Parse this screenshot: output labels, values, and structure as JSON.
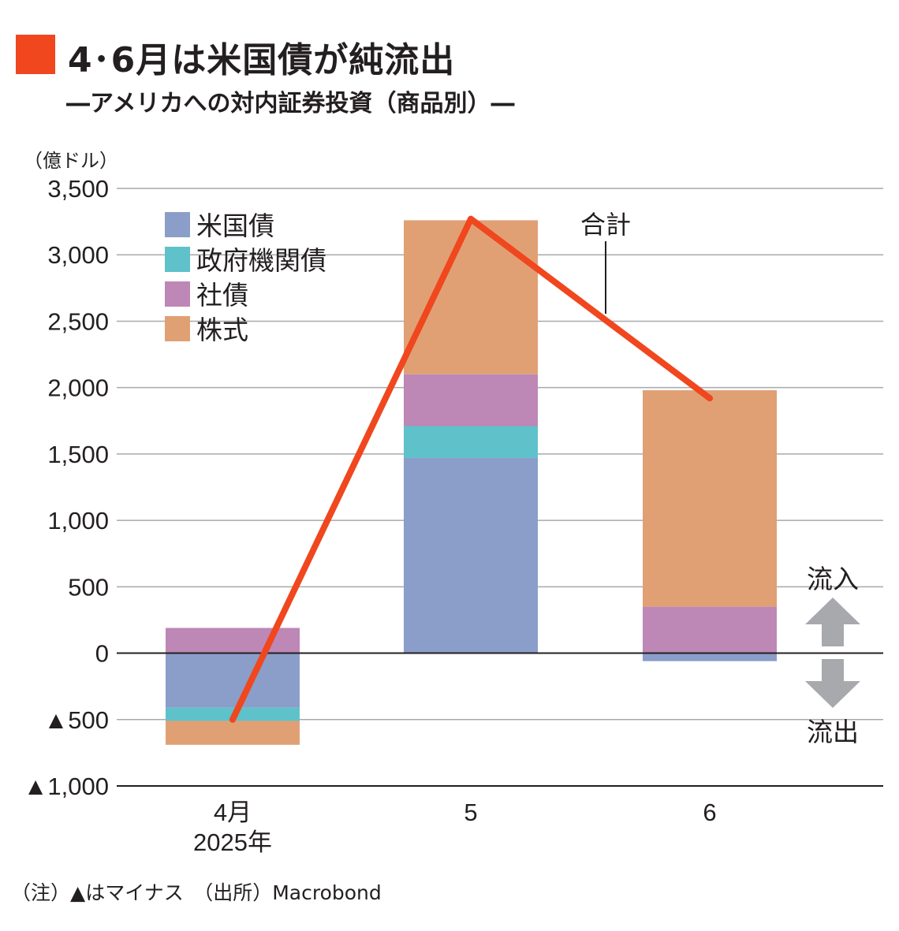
{
  "header": {
    "title": "4･6月は米国債が純流出",
    "subtitle": "―アメリカへの対内証券投資（商品別）―",
    "unit": "（億ドル）",
    "accent_color": "#f0471e"
  },
  "footnote": "（注）▲はマイナス　（出所）Macrobond",
  "chart_data": {
    "type": "bar",
    "stacked": true,
    "categories": [
      "4月",
      "5",
      "6"
    ],
    "category_sub": [
      "2025年",
      "",
      ""
    ],
    "ylim": [
      -1000,
      3500
    ],
    "yticks": [
      {
        "value": 3500,
        "label": "3,500"
      },
      {
        "value": 3000,
        "label": "3,000"
      },
      {
        "value": 2500,
        "label": "2,500"
      },
      {
        "value": 2000,
        "label": "2,000"
      },
      {
        "value": 1500,
        "label": "1,500"
      },
      {
        "value": 1000,
        "label": "1,000"
      },
      {
        "value": 500,
        "label": "500"
      },
      {
        "value": 0,
        "label": "0"
      },
      {
        "value": -500,
        "label": "▲500"
      },
      {
        "value": -1000,
        "label": "▲1,000"
      }
    ],
    "grid": true,
    "legend_position": "top-left",
    "series": [
      {
        "name": "米国債",
        "color": "#8b9dc9",
        "values": [
          -410,
          1470,
          -60
        ]
      },
      {
        "name": "政府機関債",
        "color": "#5fc1ca",
        "values": [
          -100,
          240,
          0
        ]
      },
      {
        "name": "社債",
        "color": "#bd87b6",
        "values": [
          190,
          390,
          350
        ]
      },
      {
        "name": "株式",
        "color": "#e0a074",
        "values": [
          -180,
          1160,
          1630
        ]
      }
    ],
    "total": {
      "name": "合計",
      "color": "#f0471e",
      "values": [
        -500,
        3270,
        1920
      ]
    },
    "annotations": {
      "inflow": "流入",
      "outflow": "流出"
    }
  }
}
